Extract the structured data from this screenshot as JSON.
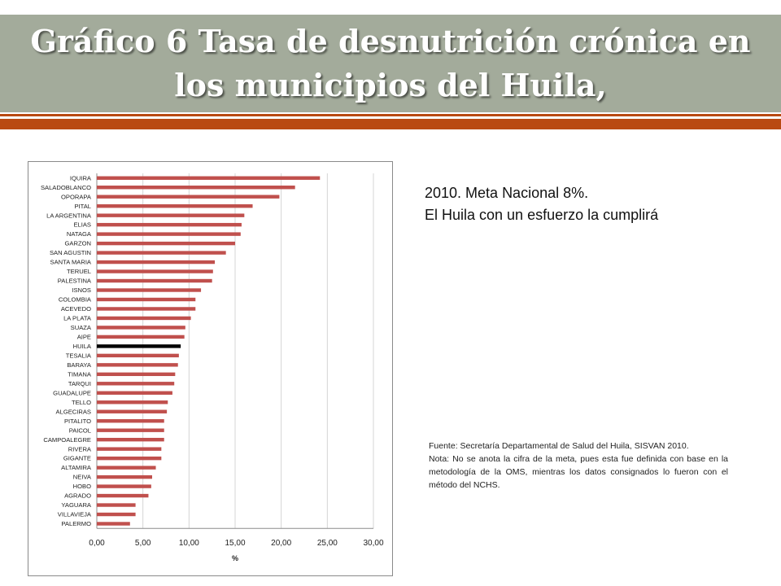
{
  "slide": {
    "title": "Gráfico 6 Tasa de desnutrición crónica en los municipios del Huila,",
    "text_line1": "2010. Meta Nacional 8%.",
    "text_line2": "El Huila con un esfuerzo la cumplirá",
    "source": "Fuente: Secretaría Departamental de Salud del Huila, SISVAN 2010.",
    "note": "Nota: No se anota la cifra de la meta, pues esta fue definida con base en la metodología de la OMS, mientras los datos consignados lo fueron con el método del NCHS."
  },
  "colors": {
    "bar": "#c0504d",
    "highlight": "#000000",
    "title_band": "#a3ab9b",
    "accent_rule": "#b94a12"
  },
  "chart_data": {
    "type": "bar",
    "orientation": "horizontal",
    "categories": [
      "IQUIRA",
      "SALADOBLANCO",
      "OPORAPA",
      "PITAL",
      "LA ARGENTINA",
      "ELIAS",
      "NATAGA",
      "GARZON",
      "SAN AGUSTIN",
      "SANTA MARIA",
      "TERUEL",
      "PALESTINA",
      "ISNOS",
      "COLOMBIA",
      "ACEVEDO",
      "LA PLATA",
      "SUAZA",
      "AIPE",
      "HUILA",
      "TESALIA",
      "BARAYA",
      "TIMANA",
      "TARQUI",
      "GUADALUPE",
      "TELLO",
      "ALGECIRAS",
      "PITALITO",
      "PAICOL",
      "CAMPOALEGRE",
      "RIVERA",
      "GIGANTE",
      "ALTAMIRA",
      "NEIVA",
      "HOBO",
      "AGRADO",
      "YAGUARA",
      "VILLAVIEJA",
      "PALERMO"
    ],
    "values": [
      24.2,
      21.5,
      19.8,
      16.9,
      16.0,
      15.7,
      15.6,
      15.0,
      14.0,
      12.8,
      12.6,
      12.5,
      11.3,
      10.7,
      10.7,
      10.2,
      9.6,
      9.5,
      9.1,
      8.9,
      8.8,
      8.5,
      8.4,
      8.2,
      7.7,
      7.6,
      7.3,
      7.3,
      7.3,
      7.0,
      7.0,
      6.4,
      6.0,
      5.9,
      5.6,
      4.2,
      4.2,
      3.6
    ],
    "highlight_category": "HUILA",
    "xlabel": "%",
    "ylabel": "",
    "xlim": [
      0,
      30
    ],
    "x_ticks": [
      0,
      5,
      10,
      15,
      20,
      25,
      30
    ],
    "x_tick_labels": [
      "0,00",
      "5,00",
      "10,00",
      "15,00",
      "20,00",
      "25,00",
      "30,00"
    ],
    "grid": true
  }
}
